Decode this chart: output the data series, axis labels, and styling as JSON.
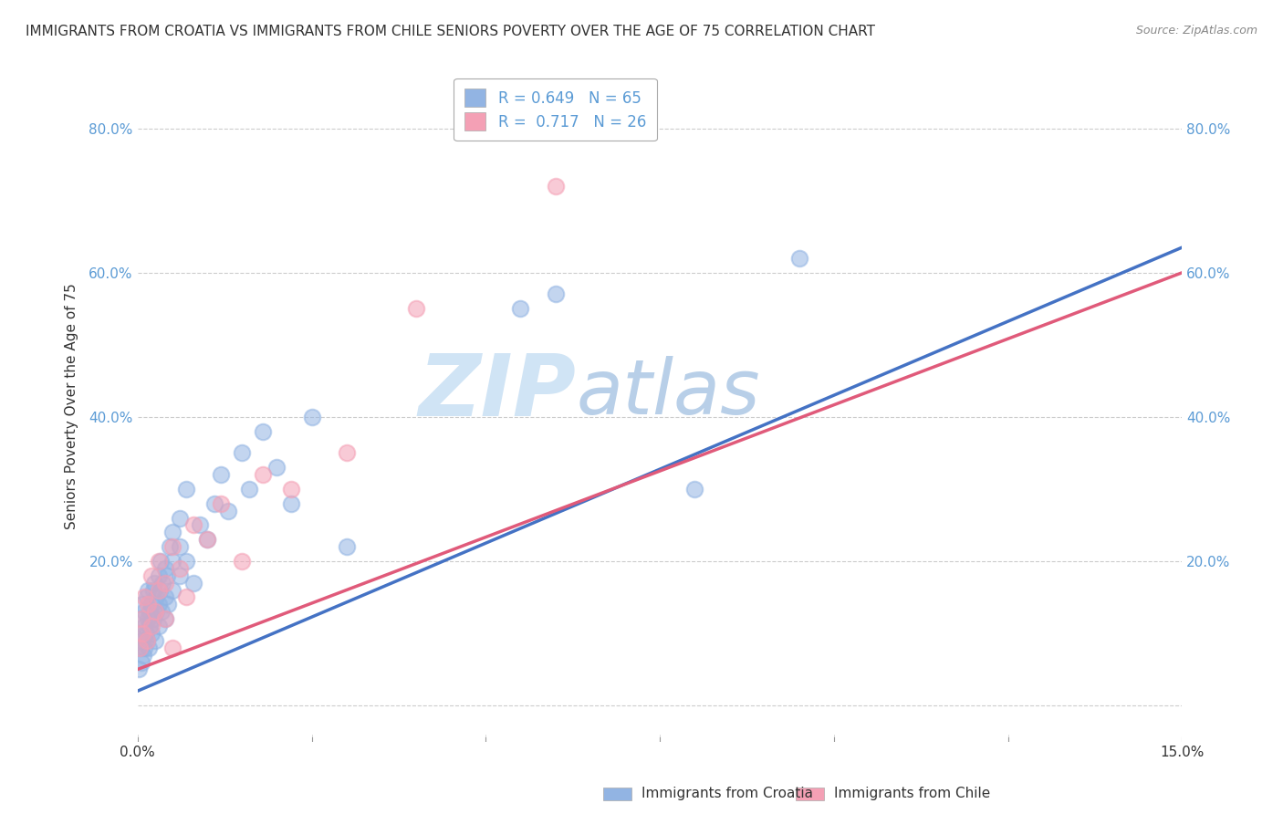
{
  "title": "IMMIGRANTS FROM CROATIA VS IMMIGRANTS FROM CHILE SENIORS POVERTY OVER THE AGE OF 75 CORRELATION CHART",
  "source": "Source: ZipAtlas.com",
  "xlabel_croatia": "Immigrants from Croatia",
  "xlabel_chile": "Immigrants from Chile",
  "ylabel": "Seniors Poverty Over the Age of 75",
  "xlim": [
    0.0,
    0.15
  ],
  "ylim": [
    -0.05,
    0.88
  ],
  "xticks": [
    0.0,
    0.025,
    0.05,
    0.075,
    0.1,
    0.125,
    0.15
  ],
  "yticks": [
    0.0,
    0.2,
    0.4,
    0.6,
    0.8
  ],
  "croatia_R": 0.649,
  "croatia_N": 65,
  "chile_R": 0.717,
  "chile_N": 26,
  "croatia_color": "#92b4e3",
  "chile_color": "#f4a0b5",
  "croatia_line_color": "#4472c4",
  "chile_line_color": "#e05a7a",
  "watermark_color": "#d0e4f5",
  "title_fontsize": 11,
  "axis_label_fontsize": 11,
  "tick_fontsize": 11,
  "legend_fontsize": 12,
  "croatia_scatter_x": [
    0.0002,
    0.0003,
    0.0004,
    0.0005,
    0.0005,
    0.0006,
    0.0007,
    0.0008,
    0.0009,
    0.001,
    0.001,
    0.0012,
    0.0013,
    0.0014,
    0.0015,
    0.0015,
    0.0016,
    0.0017,
    0.0018,
    0.002,
    0.002,
    0.0022,
    0.0023,
    0.0024,
    0.0025,
    0.0026,
    0.0027,
    0.003,
    0.003,
    0.003,
    0.0032,
    0.0033,
    0.0035,
    0.0036,
    0.004,
    0.004,
    0.004,
    0.0042,
    0.0044,
    0.0046,
    0.005,
    0.005,
    0.005,
    0.006,
    0.006,
    0.006,
    0.007,
    0.007,
    0.008,
    0.009,
    0.01,
    0.011,
    0.012,
    0.013,
    0.015,
    0.016,
    0.018,
    0.02,
    0.022,
    0.025,
    0.03,
    0.055,
    0.06,
    0.08,
    0.095
  ],
  "croatia_scatter_y": [
    0.05,
    0.1,
    0.08,
    0.12,
    0.06,
    0.09,
    0.14,
    0.07,
    0.11,
    0.08,
    0.13,
    0.1,
    0.15,
    0.09,
    0.12,
    0.16,
    0.08,
    0.13,
    0.11,
    0.14,
    0.1,
    0.16,
    0.12,
    0.17,
    0.09,
    0.15,
    0.13,
    0.11,
    0.18,
    0.14,
    0.16,
    0.2,
    0.13,
    0.17,
    0.15,
    0.19,
    0.12,
    0.18,
    0.14,
    0.22,
    0.16,
    0.2,
    0.24,
    0.18,
    0.22,
    0.26,
    0.2,
    0.3,
    0.17,
    0.25,
    0.23,
    0.28,
    0.32,
    0.27,
    0.35,
    0.3,
    0.38,
    0.33,
    0.28,
    0.4,
    0.22,
    0.55,
    0.57,
    0.3,
    0.62
  ],
  "chile_scatter_x": [
    0.0003,
    0.0005,
    0.0007,
    0.001,
    0.0013,
    0.0015,
    0.002,
    0.002,
    0.0025,
    0.003,
    0.003,
    0.004,
    0.004,
    0.005,
    0.005,
    0.006,
    0.007,
    0.008,
    0.01,
    0.012,
    0.015,
    0.018,
    0.022,
    0.03,
    0.04,
    0.06
  ],
  "chile_scatter_y": [
    0.08,
    0.12,
    0.1,
    0.15,
    0.09,
    0.14,
    0.11,
    0.18,
    0.13,
    0.16,
    0.2,
    0.12,
    0.17,
    0.08,
    0.22,
    0.19,
    0.15,
    0.25,
    0.23,
    0.28,
    0.2,
    0.32,
    0.3,
    0.35,
    0.55,
    0.72
  ],
  "croatia_line_x": [
    0.0,
    0.15
  ],
  "croatia_line_y": [
    0.02,
    0.635
  ],
  "chile_line_x": [
    0.0,
    0.15
  ],
  "chile_line_y": [
    0.05,
    0.6
  ]
}
